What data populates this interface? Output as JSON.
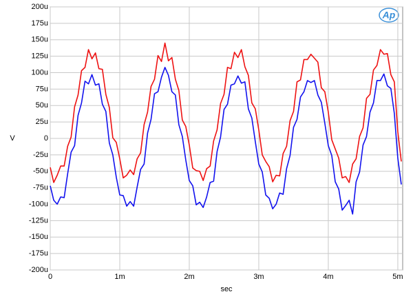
{
  "chart_data": {
    "type": "line",
    "logo": "Ap",
    "y_label": "V",
    "x_label": "sec",
    "grid": true,
    "xlim": [
      0,
      0.00507
    ],
    "ylim": [
      -0.0002,
      0.0002
    ],
    "xticks": [
      0,
      {
        "value": 0.001,
        "label": "1m"
      },
      {
        "value": 0.002,
        "label": "2m"
      },
      {
        "value": 0.003,
        "label": "3m"
      },
      {
        "value": 0.004,
        "label": "4m"
      },
      {
        "value": 0.005,
        "label": "5m"
      }
    ],
    "yticks": [
      {
        "value": -0.0002,
        "label": "-200u"
      },
      {
        "value": -0.000175,
        "label": "-175u"
      },
      {
        "value": -0.00015,
        "label": "-150u"
      },
      {
        "value": -0.000125,
        "label": "-125u"
      },
      {
        "value": -0.0001,
        "label": "-100u"
      },
      {
        "value": -7.5e-05,
        "label": "-75u"
      },
      {
        "value": -5e-05,
        "label": "-50u"
      },
      {
        "value": -2.5e-05,
        "label": "-25u"
      },
      0,
      {
        "value": 2.5e-05,
        "label": "25u"
      },
      {
        "value": 5e-05,
        "label": "50u"
      },
      {
        "value": 7.5e-05,
        "label": "75u"
      },
      {
        "value": 0.0001,
        "label": "100u"
      },
      {
        "value": 0.000125,
        "label": "125u"
      },
      {
        "value": 0.00015,
        "label": "150u"
      },
      {
        "value": 0.000175,
        "label": "175u"
      },
      {
        "value": 0.0002,
        "label": "200u"
      }
    ],
    "x": [
      0,
      5e-05,
      0.0001,
      0.00015,
      0.0002,
      0.00025,
      0.0003,
      0.00035,
      0.0004,
      0.00045,
      0.0005,
      0.00055,
      0.0006,
      0.00065,
      0.0007,
      0.00075,
      0.0008,
      0.00085,
      0.0009,
      0.00095,
      0.001,
      0.00105,
      0.0011,
      0.00115,
      0.0012,
      0.00125,
      0.0013,
      0.00135,
      0.0014,
      0.00145,
      0.0015,
      0.00155,
      0.0016,
      0.00165,
      0.0017,
      0.00175,
      0.0018,
      0.00185,
      0.0019,
      0.00195,
      0.002,
      0.00205,
      0.0021,
      0.00215,
      0.0022,
      0.00225,
      0.0023,
      0.00235,
      0.0024,
      0.00245,
      0.0025,
      0.00255,
      0.0026,
      0.00265,
      0.0027,
      0.00275,
      0.0028,
      0.00285,
      0.0029,
      0.00295,
      0.003,
      0.00305,
      0.0031,
      0.00315,
      0.0032,
      0.00325,
      0.0033,
      0.00335,
      0.0034,
      0.00345,
      0.0035,
      0.00355,
      0.0036,
      0.00365,
      0.0037,
      0.00375,
      0.0038,
      0.00385,
      0.0039,
      0.00395,
      0.004,
      0.00405,
      0.0041,
      0.00415,
      0.0042,
      0.00425,
      0.0043,
      0.00435,
      0.0044,
      0.00445,
      0.0045,
      0.00455,
      0.0046,
      0.00465,
      0.0047,
      0.00475,
      0.0048,
      0.00485,
      0.0049,
      0.00495,
      0.005,
      0.00505
    ],
    "series": [
      {
        "color": "#ee1111",
        "values": [
          -4.4e-05,
          -6.7e-05,
          -5.6e-05,
          -4.2e-05,
          -4.2e-05,
          -1.2e-05,
          2e-06,
          4.8e-05,
          6.6e-05,
          0.000103,
          0.000108,
          0.000135,
          0.000121,
          0.00013,
          0.000106,
          0.000105,
          6.7e-05,
          4.7e-05,
          1e-06,
          -6e-06,
          -3.1e-05,
          -6e-05,
          -5.6e-05,
          -4.8e-05,
          -5.5e-05,
          -3.1e-05,
          -2.2e-05,
          2.1e-05,
          4e-05,
          7.9e-05,
          9e-05,
          0.000126,
          0.000117,
          0.000145,
          0.000118,
          0.000123,
          9e-05,
          7.3e-05,
          2.8e-05,
          1.8e-05,
          -1e-05,
          -4.5e-05,
          -4.9e-05,
          -5e-05,
          -6.4e-05,
          -4.6e-05,
          -4.2e-05,
          -4e-06,
          1.3e-05,
          5.3e-05,
          6.7e-05,
          0.000108,
          0.000106,
          0.000131,
          0.000123,
          0.000135,
          0.000109,
          9.6e-05,
          5.4e-05,
          4.5e-05,
          1.3e-05,
          -2.5e-05,
          -3.5e-05,
          -4.3e-05,
          -6.6e-05,
          -5.6e-05,
          -5.7e-05,
          -2.3e-05,
          -1.2e-05,
          2.7e-05,
          4.1e-05,
          8.6e-05,
          8.9e-05,
          0.00012,
          0.00012,
          0.000128,
          0.000122,
          0.000116,
          7.7e-05,
          7.1e-05,
          4e-05,
          -2e-06,
          -1.6e-05,
          -3e-05,
          -6e-05,
          -5.8e-05,
          -6.7e-05,
          -3.9e-05,
          -3.1e-05,
          3e-06,
          1.6e-05,
          6.1e-05,
          6.7e-05,
          0.000104,
          0.000111,
          0.000135,
          0.000128,
          0.000129,
          9.7e-05,
          8.6e-05,
          1e-05,
          -3.5e-05
        ]
      },
      {
        "color": "#1111ee",
        "values": [
          -7.2e-05,
          -9.4e-05,
          -0.0001,
          -8.9e-05,
          -9e-05,
          -5.4e-05,
          -2.1e-05,
          -1.1e-05,
          3.5e-05,
          5.4e-05,
          8.7e-05,
          8.3e-05,
          9.7e-05,
          8.1e-05,
          8.3e-05,
          5.2e-05,
          4.1e-05,
          -7e-06,
          -2.5e-05,
          -5.9e-05,
          -8.6e-05,
          -8.7e-05,
          -0.000103,
          -9.6e-05,
          -0.000103,
          -7.4e-05,
          -4.7e-05,
          -3.9e-05,
          8e-06,
          2.9e-05,
          6.8e-05,
          7.1e-05,
          9.3e-05,
          0.000108,
          9.6e-05,
          7.1e-05,
          6.6e-05,
          2.1e-05,
          3e-06,
          -3.3e-05,
          -6.4e-05,
          -7.2e-05,
          -0.000101,
          -9.7e-05,
          -0.000105,
          -8.9e-05,
          -6.7e-05,
          -6.5e-05,
          -2e-05,
          2e-06,
          4.4e-05,
          5.2e-05,
          8.1e-05,
          8.3e-05,
          9.5e-05,
          8.4e-05,
          8.6e-05,
          4.5e-05,
          3.1e-05,
          -5e-06,
          -3.9e-05,
          -5.1e-05,
          -8.6e-05,
          -9.1e-05,
          -0.000107,
          -0.0001,
          -8.3e-05,
          -8.5e-05,
          -4.6e-05,
          -2.6e-05,
          1.7e-05,
          2.9e-05,
          6.3e-05,
          7.1e-05,
          8.8e-05,
          8.5e-05,
          8.8e-05,
          6.6e-05,
          5.5e-05,
          2.3e-05,
          -1.1e-05,
          -2.6e-05,
          -6.6e-05,
          -7.7e-05,
          -0.000109,
          -0.000102,
          -9.4e-05,
          -0.000115,
          -6.6e-05,
          -5.1e-05,
          -1e-05,
          3e-06,
          4e-05,
          5.4e-05,
          8.8e-05,
          8.8e-05,
          9.8e-05,
          8e-05,
          7.6e-05,
          3.8e-05,
          -3e-05,
          -7e-05
        ]
      }
    ]
  }
}
